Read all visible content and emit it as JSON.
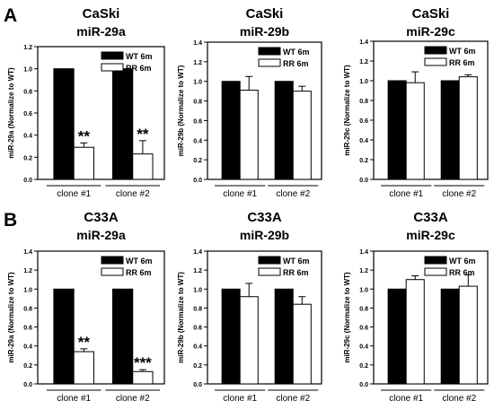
{
  "panel_labels": [
    "A",
    "B"
  ],
  "legend": {
    "wt": "WT 6m",
    "rr": "RR 6m"
  },
  "colors": {
    "wt": "#000000",
    "rr": "#ffffff",
    "axis": "#000000"
  },
  "chart_data": [
    {
      "type": "bar",
      "panel": "A",
      "cell_line": "CaSki",
      "mirna": "miR-29a",
      "ylabel": "miR-29a (Normalize to WT)",
      "ylim": [
        0,
        1.2
      ],
      "yticks": [
        "0.0",
        "0.2",
        "0.4",
        "0.6",
        "0.8",
        "1.0",
        "1.2"
      ],
      "categories": [
        "clone #1",
        "clone #2"
      ],
      "series": [
        {
          "name": "WT 6m",
          "values": [
            1.0,
            1.0
          ],
          "errors": [
            0,
            0
          ]
        },
        {
          "name": "RR 6m",
          "values": [
            0.29,
            0.23
          ],
          "errors": [
            0.04,
            0.12
          ]
        }
      ],
      "annotations": [
        "**",
        "**"
      ],
      "legend_position": "top-right"
    },
    {
      "type": "bar",
      "panel": "A",
      "cell_line": "CaSki",
      "mirna": "miR-29b",
      "ylabel": "miR-29b (Normalize to WT)",
      "ylim": [
        0,
        1.4
      ],
      "yticks": [
        "0.0",
        "0.2",
        "0.4",
        "0.6",
        "0.8",
        "1.0",
        "1.2",
        "1.4"
      ],
      "categories": [
        "clone #1",
        "clone #2"
      ],
      "series": [
        {
          "name": "WT 6m",
          "values": [
            1.0,
            1.0
          ],
          "errors": [
            0,
            0
          ]
        },
        {
          "name": "RR 6m",
          "values": [
            0.91,
            0.9
          ],
          "errors": [
            0.14,
            0.05
          ]
        }
      ],
      "annotations": [
        "",
        ""
      ],
      "legend_position": "top-right"
    },
    {
      "type": "bar",
      "panel": "A",
      "cell_line": "CaSki",
      "mirna": "miR-29c",
      "ylabel": "miR-29c (Normalize to WT)",
      "ylim": [
        0,
        1.4
      ],
      "yticks": [
        "0.0",
        "0.2",
        "0.4",
        "0.6",
        "0.8",
        "1.0",
        "1.2",
        "1.4"
      ],
      "categories": [
        "clone #1",
        "clone #2"
      ],
      "series": [
        {
          "name": "WT 6m",
          "values": [
            1.0,
            1.0
          ],
          "errors": [
            0,
            0
          ]
        },
        {
          "name": "RR 6m",
          "values": [
            0.98,
            1.04
          ],
          "errors": [
            0.11,
            0.02
          ]
        }
      ],
      "annotations": [
        "",
        ""
      ],
      "legend_position": "top-right"
    },
    {
      "type": "bar",
      "panel": "B",
      "cell_line": "C33A",
      "mirna": "miR-29a",
      "ylabel": "miR-29a (Normalize to WT)",
      "ylim": [
        0,
        1.4
      ],
      "yticks": [
        "0.0",
        "0.2",
        "0.4",
        "0.6",
        "0.8",
        "1.0",
        "1.2",
        "1.4"
      ],
      "categories": [
        "clone #1",
        "clone #2"
      ],
      "series": [
        {
          "name": "WT 6m",
          "values": [
            1.0,
            1.0
          ],
          "errors": [
            0,
            0
          ]
        },
        {
          "name": "RR 6m",
          "values": [
            0.34,
            0.13
          ],
          "errors": [
            0.03,
            0.02
          ]
        }
      ],
      "annotations": [
        "**",
        "***"
      ],
      "legend_position": "top-right"
    },
    {
      "type": "bar",
      "panel": "B",
      "cell_line": "C33A",
      "mirna": "miR-29b",
      "ylabel": "miR-29b (Normalize to WT)",
      "ylim": [
        0,
        1.4
      ],
      "yticks": [
        "0.0",
        "0.2",
        "0.4",
        "0.6",
        "0.8",
        "1.0",
        "1.2",
        "1.4"
      ],
      "categories": [
        "clone #1",
        "clone #2"
      ],
      "series": [
        {
          "name": "WT 6m",
          "values": [
            1.0,
            1.0
          ],
          "errors": [
            0,
            0
          ]
        },
        {
          "name": "RR 6m",
          "values": [
            0.92,
            0.84
          ],
          "errors": [
            0.14,
            0.08
          ]
        }
      ],
      "annotations": [
        "",
        ""
      ],
      "legend_position": "top-right"
    },
    {
      "type": "bar",
      "panel": "B",
      "cell_line": "C33A",
      "mirna": "miR-29c",
      "ylabel": "miR-29c (Normalize to WT)",
      "ylim": [
        0,
        1.4
      ],
      "yticks": [
        "0.0",
        "0.2",
        "0.4",
        "0.6",
        "0.8",
        "1.0",
        "1.2",
        "1.4"
      ],
      "categories": [
        "clone #1",
        "clone #2"
      ],
      "series": [
        {
          "name": "WT 6m",
          "values": [
            1.0,
            1.0
          ],
          "errors": [
            0,
            0
          ]
        },
        {
          "name": "RR 6m",
          "values": [
            1.1,
            1.03
          ],
          "errors": [
            0.04,
            0.12
          ]
        }
      ],
      "annotations": [
        "",
        ""
      ],
      "legend_position": "top-right"
    }
  ]
}
